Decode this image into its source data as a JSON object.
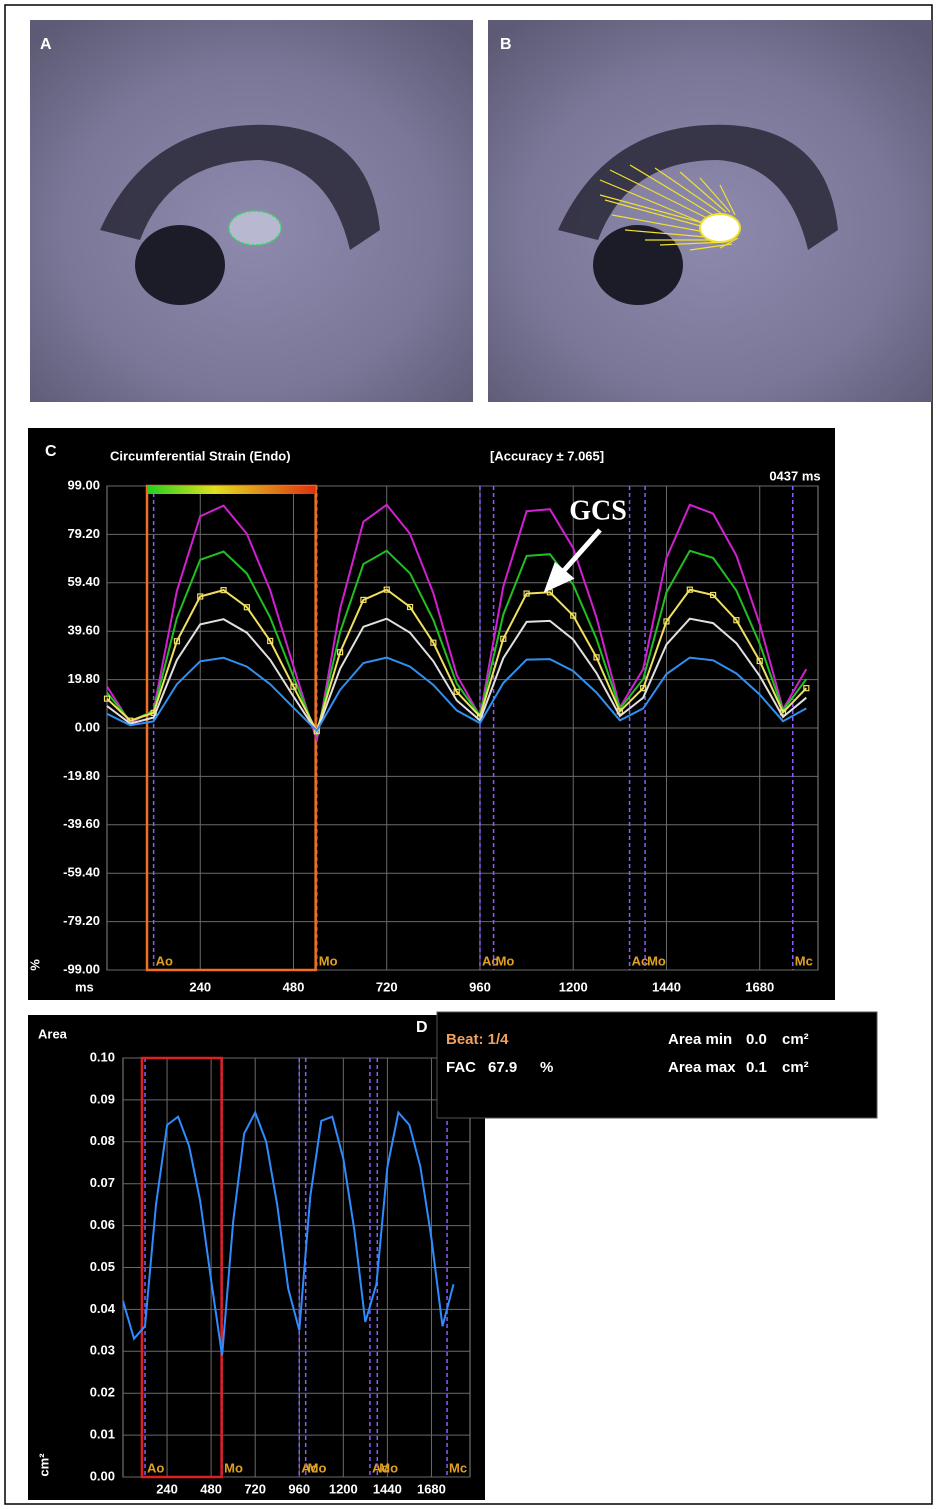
{
  "panels": {
    "A": {
      "label": "A"
    },
    "B": {
      "label": "B"
    }
  },
  "chart_data": [
    {
      "type": "line",
      "panel_label": "C",
      "title": "Circumferential Strain (Endo)",
      "subtitle": "[Accuracy ± 7.065]",
      "time_marker": "0437 ms",
      "x_label": "ms",
      "y_label": "%",
      "annotation": "GCS",
      "xlim": [
        0,
        1830
      ],
      "xticks": [
        240,
        480,
        720,
        960,
        1200,
        1440,
        1680
      ],
      "ylim": [
        -99,
        99
      ],
      "yticks": [
        {
          "value": 99,
          "label": "99.00"
        },
        {
          "value": 79.2,
          "label": "79.20"
        },
        {
          "value": 59.4,
          "label": "59.40"
        },
        {
          "value": 39.6,
          "label": "39.60"
        },
        {
          "value": 19.8,
          "label": "19.80"
        },
        {
          "value": 0,
          "label": "0.00"
        },
        {
          "value": -19.8,
          "label": "-19.80"
        },
        {
          "value": -39.6,
          "label": "-39.60"
        },
        {
          "value": -59.4,
          "label": "-59.40"
        },
        {
          "value": -79.2,
          "label": "-79.20"
        },
        {
          "value": -99,
          "label": "-99.00"
        }
      ],
      "grid": true,
      "beat_window": [
        103,
        537
      ],
      "events": [
        {
          "label": "Ao",
          "x": 120
        },
        {
          "label": "Mo",
          "x": 540
        },
        {
          "label": "Ac",
          "x": 960
        },
        {
          "label": "Mo",
          "x": 995
        },
        {
          "label": "Ac",
          "x": 1345
        },
        {
          "label": "Mo",
          "x": 1385
        },
        {
          "label": "Mc",
          "x": 1765
        }
      ],
      "x": [
        0,
        60,
        120,
        180,
        240,
        300,
        360,
        420,
        480,
        540,
        600,
        660,
        720,
        780,
        840,
        900,
        960,
        1020,
        1080,
        1140,
        1200,
        1260,
        1320,
        1380,
        1440,
        1500,
        1560,
        1620,
        1680,
        1740,
        1800
      ],
      "series": [
        {
          "color": "#d020d0",
          "values": [
            17,
            2,
            7.3,
            56.1,
            86.6,
            91,
            79.4,
            56.3,
            25.2,
            -5.1,
            48.7,
            84.4,
            91.3,
            79.5,
            55.1,
            21.7,
            4.8,
            57.9,
            88.7,
            89.5,
            73.6,
            45.2,
            8.4,
            24.1,
            69.6,
            91.3,
            87.7,
            70.5,
            42.6,
            7.6,
            24.1
          ]
        },
        {
          "color": "#20c020",
          "values": [
            14.5,
            2.8,
            6.9,
            45,
            68.8,
            72.2,
            63.2,
            45.2,
            20.9,
            -2.7,
            39.2,
            67.1,
            72.5,
            63.3,
            44.2,
            18.2,
            5,
            46.4,
            70.4,
            71.1,
            58.6,
            36.5,
            7.8,
            20,
            55.5,
            72.5,
            69.6,
            56.2,
            34.5,
            7.2,
            20
          ]
        },
        {
          "color": "#f0e060",
          "markers": true,
          "values": [
            12,
            3,
            6.2,
            35.5,
            53.8,
            56.4,
            49.4,
            35.6,
            16.9,
            -1.3,
            31,
            52.4,
            56.6,
            49.5,
            34.9,
            14.8,
            4.7,
            36.5,
            55,
            55.5,
            46,
            28.9,
            6.8,
            16.3,
            43.6,
            56.6,
            54.4,
            44.1,
            27.4,
            6.4,
            16.3
          ]
        },
        {
          "color": "#e0e0e0",
          "values": [
            9,
            1.8,
            4.3,
            27.8,
            42.4,
            44.5,
            39,
            27.9,
            12.9,
            -1.6,
            24.2,
            41.4,
            44.7,
            39,
            27.3,
            11.3,
            3.1,
            28.6,
            43.4,
            43.8,
            36.2,
            22.5,
            4.9,
            12.4,
            34.2,
            44.7,
            42.9,
            34.7,
            21.3,
            4.5,
            12.4
          ]
        },
        {
          "color": "#3090f0",
          "values": [
            5.8,
            1.1,
            2.7,
            17.9,
            27.3,
            28.7,
            25.1,
            17.9,
            8.3,
            -1.1,
            15.6,
            26.6,
            28.8,
            25.1,
            17.6,
            7.2,
            2,
            18.4,
            28,
            28.2,
            23.3,
            14.5,
            3.1,
            8,
            22.1,
            28.8,
            27.7,
            22.3,
            13.7,
            2.8,
            8
          ]
        }
      ]
    },
    {
      "type": "line",
      "panel_label": "D",
      "title": "Area",
      "y_label": "cm²",
      "xlim": [
        0,
        1890
      ],
      "xticks": [
        240,
        480,
        720,
        960,
        1200,
        1440,
        1680
      ],
      "ylim": [
        0,
        0.1
      ],
      "yticks": [
        {
          "value": 0,
          "label": "0.00"
        },
        {
          "value": 0.01,
          "label": "0.01"
        },
        {
          "value": 0.02,
          "label": "0.02"
        },
        {
          "value": 0.03,
          "label": "0.03"
        },
        {
          "value": 0.04,
          "label": "0.04"
        },
        {
          "value": 0.05,
          "label": "0.05"
        },
        {
          "value": 0.06,
          "label": "0.06"
        },
        {
          "value": 0.07,
          "label": "0.07"
        },
        {
          "value": 0.08,
          "label": "0.08"
        },
        {
          "value": 0.09,
          "label": "0.09"
        },
        {
          "value": 0.1,
          "label": "0.10"
        }
      ],
      "grid": true,
      "beat_window": [
        103,
        537
      ],
      "events": [
        {
          "label": "Ao",
          "x": 120
        },
        {
          "label": "Mo",
          "x": 540
        },
        {
          "label": "Ac",
          "x": 960
        },
        {
          "label": "Mo",
          "x": 995
        },
        {
          "label": "Ac",
          "x": 1345
        },
        {
          "label": "Mo",
          "x": 1385
        },
        {
          "label": "Mc",
          "x": 1765
        }
      ],
      "x": [
        0,
        60,
        120,
        180,
        240,
        300,
        360,
        420,
        480,
        540,
        600,
        660,
        720,
        780,
        840,
        900,
        960,
        1020,
        1080,
        1140,
        1200,
        1260,
        1320,
        1380,
        1440,
        1500,
        1560,
        1620,
        1680,
        1740,
        1800
      ],
      "series": [
        {
          "color": "#2f8cff",
          "values": [
            0.042,
            0.033,
            0.036,
            0.065,
            0.084,
            0.086,
            0.079,
            0.066,
            0.047,
            0.029,
            0.061,
            0.082,
            0.087,
            0.08,
            0.065,
            0.045,
            0.035,
            0.067,
            0.085,
            0.086,
            0.076,
            0.059,
            0.037,
            0.046,
            0.074,
            0.087,
            0.084,
            0.074,
            0.057,
            0.036,
            0.046
          ]
        }
      ],
      "info_box": {
        "beat": "Beat: 1/4",
        "fac_label": "FAC",
        "fac_value": "67.9",
        "fac_unit": "%",
        "area_min_label": "Area min",
        "area_min_value": "0.0",
        "area_max_label": "Area max",
        "area_max_value": "0.1",
        "unit": "cm²"
      }
    }
  ]
}
